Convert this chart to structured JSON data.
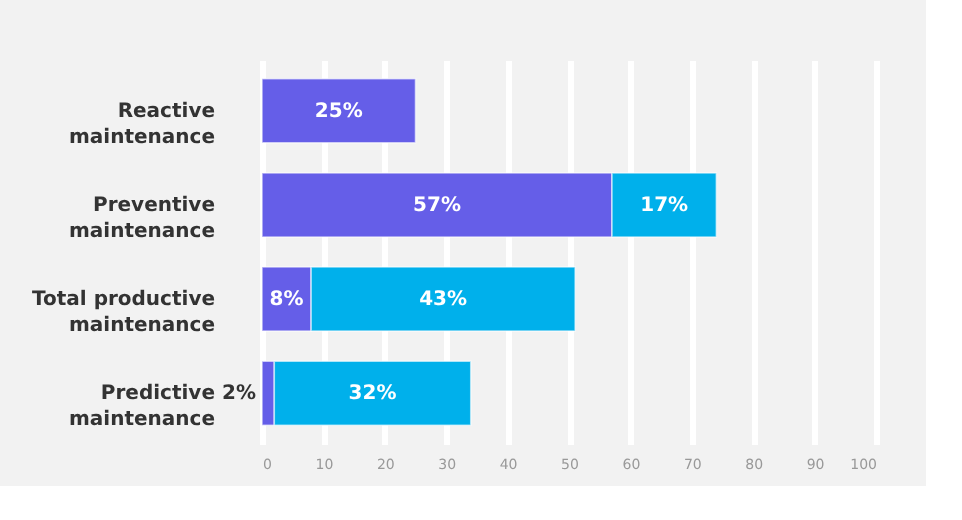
{
  "chart_data": {
    "type": "bar",
    "orientation": "horizontal",
    "stacked": true,
    "categories": [
      "Reactive maintenance",
      "Preventive maintenance",
      "Total productive maintenance",
      "Predictive maintenance"
    ],
    "series": [
      {
        "color": "#655ee8",
        "values": [
          25,
          57,
          8,
          2
        ],
        "value_labels": [
          "25%",
          "57%",
          "8%",
          "2%"
        ]
      },
      {
        "color": "#00b0eb",
        "values": [
          null,
          17,
          43,
          32
        ],
        "value_labels": [
          null,
          "17%",
          "43%",
          "32%"
        ]
      }
    ],
    "xlim": [
      0,
      100
    ],
    "xticks": [
      0,
      10,
      20,
      30,
      40,
      50,
      60,
      70,
      80,
      90,
      100
    ],
    "grid": "x"
  }
}
